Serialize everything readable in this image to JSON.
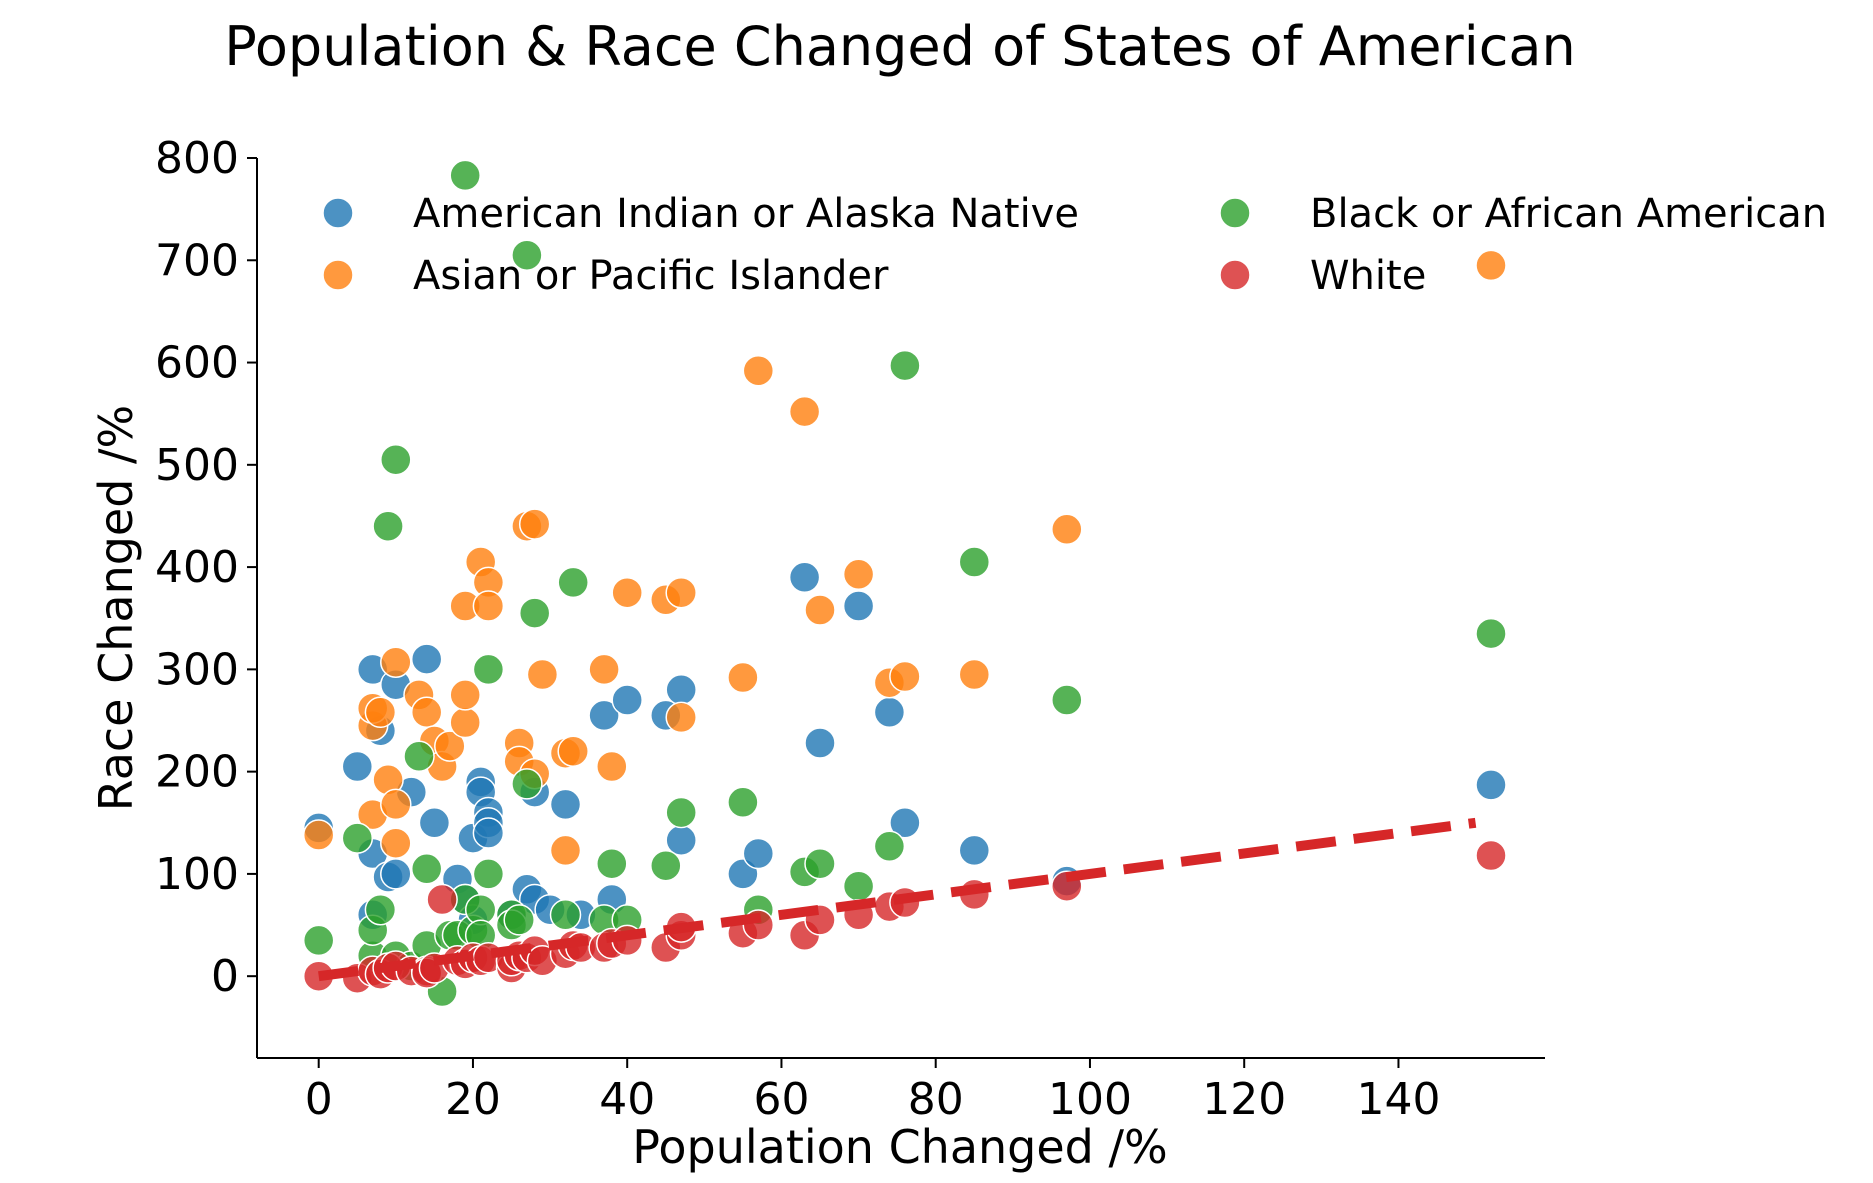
{
  "chart_data": {
    "type": "scatter",
    "title": "Population & Race Changed of States of American",
    "xlabel": "Population Changed /%",
    "ylabel": "Race Changed /%",
    "xlim": [
      -8,
      159
    ],
    "ylim": [
      -80,
      800
    ],
    "xticks": [
      "0",
      "20",
      "40",
      "60",
      "80",
      "100",
      "120",
      "140"
    ],
    "yticks": [
      "800",
      "700",
      "600",
      "500",
      "400",
      "300",
      "200",
      "100",
      "0"
    ],
    "grid": false,
    "legend_position": "top",
    "series": [
      {
        "name": "American Indian or Alaska Native",
        "color": "#1f77b4",
        "points": [
          [
            0,
            145
          ],
          [
            5,
            205
          ],
          [
            7,
            300
          ],
          [
            8,
            240
          ],
          [
            7,
            120
          ],
          [
            9,
            97
          ],
          [
            10,
            100
          ],
          [
            10,
            285
          ],
          [
            12,
            180
          ],
          [
            14,
            310
          ],
          [
            15,
            150
          ],
          [
            18,
            95
          ],
          [
            19,
            75
          ],
          [
            20,
            135
          ],
          [
            21,
            190
          ],
          [
            21,
            180
          ],
          [
            22,
            160
          ],
          [
            22,
            150
          ],
          [
            22,
            140
          ],
          [
            25,
            60
          ],
          [
            27,
            85
          ],
          [
            28,
            75
          ],
          [
            28,
            180
          ],
          [
            32,
            168
          ],
          [
            34,
            60
          ],
          [
            37,
            255
          ],
          [
            38,
            75
          ],
          [
            40,
            270
          ],
          [
            45,
            255
          ],
          [
            47,
            280
          ],
          [
            47,
            133
          ],
          [
            55,
            100
          ],
          [
            57,
            120
          ],
          [
            63,
            390
          ],
          [
            65,
            228
          ],
          [
            70,
            362
          ],
          [
            74,
            258
          ],
          [
            76,
            150
          ],
          [
            85,
            123
          ],
          [
            97,
            93
          ],
          [
            152,
            187
          ],
          [
            7,
            60
          ],
          [
            20,
            55
          ],
          [
            30,
            65
          ]
        ]
      },
      {
        "name": "Asian or Pacific Islander",
        "color": "#ff7f0e",
        "points": [
          [
            0,
            138
          ],
          [
            7,
            245
          ],
          [
            7,
            262
          ],
          [
            8,
            258
          ],
          [
            7,
            158
          ],
          [
            9,
            192
          ],
          [
            10,
            307
          ],
          [
            10,
            130
          ],
          [
            10,
            168
          ],
          [
            13,
            275
          ],
          [
            14,
            258
          ],
          [
            15,
            230
          ],
          [
            16,
            205
          ],
          [
            17,
            225
          ],
          [
            19,
            248
          ],
          [
            19,
            275
          ],
          [
            19,
            362
          ],
          [
            21,
            405
          ],
          [
            22,
            385
          ],
          [
            22,
            362
          ],
          [
            26,
            228
          ],
          [
            26,
            210
          ],
          [
            27,
            440
          ],
          [
            28,
            442
          ],
          [
            28,
            198
          ],
          [
            29,
            295
          ],
          [
            32,
            123
          ],
          [
            32,
            218
          ],
          [
            33,
            220
          ],
          [
            37,
            300
          ],
          [
            38,
            205
          ],
          [
            40,
            375
          ],
          [
            45,
            368
          ],
          [
            47,
            375
          ],
          [
            47,
            253
          ],
          [
            55,
            292
          ],
          [
            57,
            592
          ],
          [
            63,
            552
          ],
          [
            65,
            358
          ],
          [
            70,
            393
          ],
          [
            74,
            287
          ],
          [
            76,
            293
          ],
          [
            85,
            295
          ],
          [
            97,
            437
          ],
          [
            152,
            695
          ]
        ]
      },
      {
        "name": "Black or African American",
        "color": "#2ca02c",
        "points": [
          [
            0,
            35
          ],
          [
            5,
            135
          ],
          [
            7,
            20
          ],
          [
            7,
            45
          ],
          [
            8,
            65
          ],
          [
            9,
            440
          ],
          [
            10,
            505
          ],
          [
            10,
            20
          ],
          [
            12,
            10
          ],
          [
            13,
            215
          ],
          [
            14,
            105
          ],
          [
            14,
            30
          ],
          [
            16,
            -15
          ],
          [
            17,
            40
          ],
          [
            18,
            40
          ],
          [
            19,
            783
          ],
          [
            19,
            75
          ],
          [
            20,
            45
          ],
          [
            21,
            65
          ],
          [
            21,
            40
          ],
          [
            22,
            300
          ],
          [
            22,
            100
          ],
          [
            25,
            60
          ],
          [
            25,
            50
          ],
          [
            26,
            55
          ],
          [
            27,
            705
          ],
          [
            27,
            188
          ],
          [
            28,
            355
          ],
          [
            32,
            60
          ],
          [
            33,
            385
          ],
          [
            37,
            55
          ],
          [
            38,
            110
          ],
          [
            40,
            55
          ],
          [
            45,
            108
          ],
          [
            47,
            160
          ],
          [
            55,
            170
          ],
          [
            57,
            65
          ],
          [
            63,
            102
          ],
          [
            65,
            110
          ],
          [
            70,
            88
          ],
          [
            74,
            127
          ],
          [
            76,
            597
          ],
          [
            85,
            405
          ],
          [
            97,
            270
          ],
          [
            152,
            335
          ]
        ]
      },
      {
        "name": "White",
        "color": "#d62728",
        "points": [
          [
            0,
            0
          ],
          [
            5,
            -2
          ],
          [
            7,
            5
          ],
          [
            8,
            2
          ],
          [
            9,
            8
          ],
          [
            10,
            10
          ],
          [
            12,
            5
          ],
          [
            14,
            5
          ],
          [
            14,
            3
          ],
          [
            15,
            8
          ],
          [
            16,
            75
          ],
          [
            18,
            15
          ],
          [
            19,
            12
          ],
          [
            20,
            18
          ],
          [
            21,
            15
          ],
          [
            22,
            18
          ],
          [
            25,
            8
          ],
          [
            25,
            15
          ],
          [
            26,
            20
          ],
          [
            27,
            18
          ],
          [
            28,
            25
          ],
          [
            29,
            15
          ],
          [
            32,
            22
          ],
          [
            33,
            30
          ],
          [
            34,
            28
          ],
          [
            37,
            28
          ],
          [
            38,
            32
          ],
          [
            40,
            35
          ],
          [
            45,
            28
          ],
          [
            47,
            40
          ],
          [
            47,
            48
          ],
          [
            55,
            42
          ],
          [
            57,
            50
          ],
          [
            63,
            40
          ],
          [
            65,
            55
          ],
          [
            70,
            60
          ],
          [
            74,
            68
          ],
          [
            76,
            72
          ],
          [
            85,
            80
          ],
          [
            97,
            88
          ],
          [
            152,
            118
          ]
        ]
      }
    ],
    "trendline": {
      "color": "#d62728",
      "style": "dashed",
      "from": [
        0,
        0
      ],
      "to": [
        150,
        150
      ]
    }
  }
}
